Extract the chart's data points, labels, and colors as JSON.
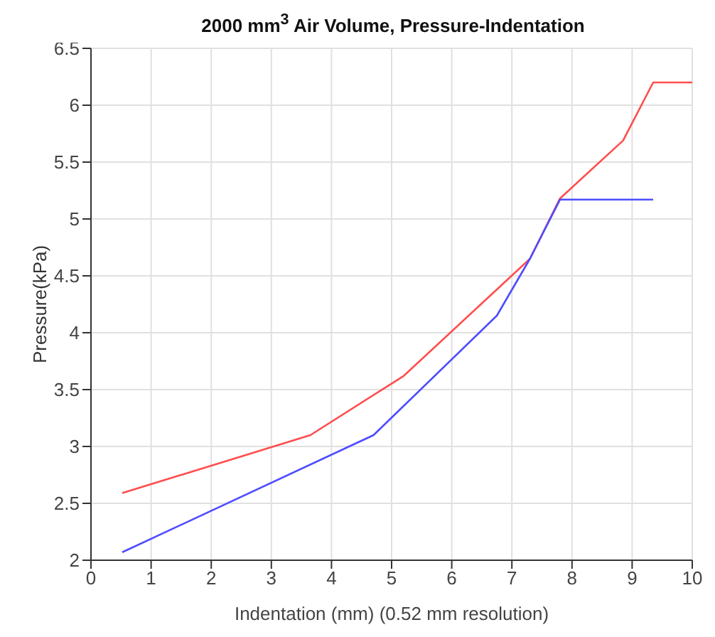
{
  "chart_data": {
    "type": "line",
    "title": "2000 mm$^{3}$ Air Volume, Pressure-Indentation",
    "xlabel": "Indentation (mm) (0.52 mm resolution)",
    "ylabel": "Pressure(kPa)",
    "xlim": [
      0,
      10
    ],
    "xticks": [
      0,
      1,
      2,
      3,
      4,
      5,
      6,
      7,
      8,
      9,
      10
    ],
    "ylim": [
      2,
      6.5
    ],
    "yticks": [
      2,
      2.5,
      3,
      3.5,
      4,
      4.5,
      5,
      5.5,
      6,
      6.5
    ],
    "grid": true,
    "marker": "none",
    "line_style": "solid",
    "series": [
      {
        "color": "#ff4d4d",
        "x": [
          0.52,
          3.65,
          5.2,
          7.3,
          7.8,
          8.85,
          9.35,
          10
        ],
        "values": [
          2.59,
          3.1,
          3.62,
          4.65,
          5.18,
          5.69,
          6.2,
          6.2
        ]
      },
      {
        "color": "#4d4dff",
        "x": [
          0.52,
          4.7,
          6.75,
          7.3,
          7.8,
          9.35
        ],
        "values": [
          2.07,
          3.1,
          4.15,
          4.65,
          5.17,
          5.17
        ]
      }
    ]
  }
}
